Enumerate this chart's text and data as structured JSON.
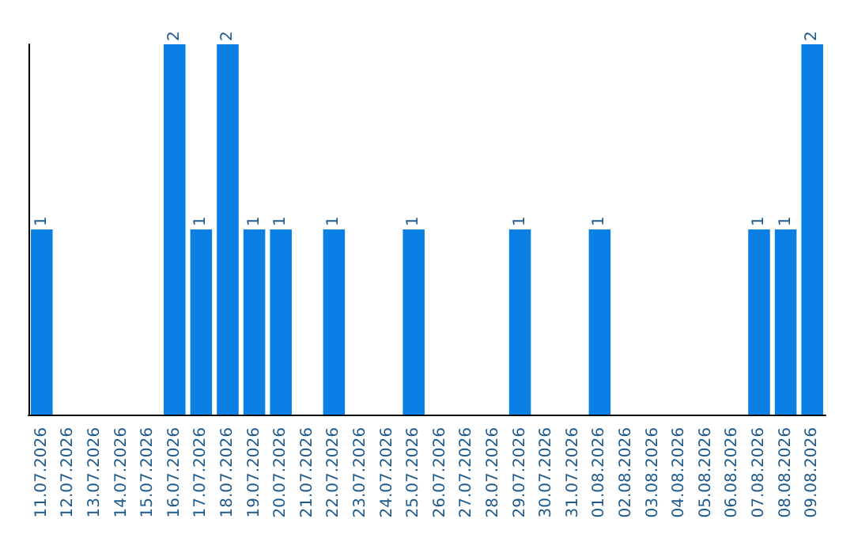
{
  "chart_data": {
    "type": "bar",
    "categories": [
      "11.07.2026",
      "12.07.2026",
      "13.07.2026",
      "14.07.2026",
      "15.07.2026",
      "16.07.2026",
      "17.07.2026",
      "18.07.2026",
      "19.07.2026",
      "20.07.2026",
      "21.07.2026",
      "22.07.2026",
      "23.07.2026",
      "24.07.2026",
      "25.07.2026",
      "26.07.2026",
      "27.07.2026",
      "28.07.2026",
      "29.07.2026",
      "30.07.2026",
      "31.07.2026",
      "01.08.2026",
      "02.08.2026",
      "03.08.2026",
      "04.08.2026",
      "05.08.2026",
      "06.08.2026",
      "07.08.2026",
      "08.08.2026",
      "09.08.2026"
    ],
    "values": [
      1,
      0,
      0,
      0,
      0,
      2,
      1,
      2,
      1,
      1,
      0,
      1,
      0,
      0,
      1,
      0,
      0,
      0,
      1,
      0,
      0,
      1,
      0,
      0,
      0,
      0,
      0,
      1,
      1,
      2
    ],
    "value_labels": [
      "1",
      null,
      null,
      null,
      null,
      "2",
      "1",
      "2",
      "1",
      "1",
      null,
      "1",
      null,
      null,
      "1",
      null,
      null,
      null,
      "1",
      null,
      null,
      "1",
      null,
      null,
      null,
      null,
      null,
      "1",
      "1",
      "2"
    ],
    "color": "#0a80e4",
    "tick_labels": "x",
    "grid": false
  }
}
